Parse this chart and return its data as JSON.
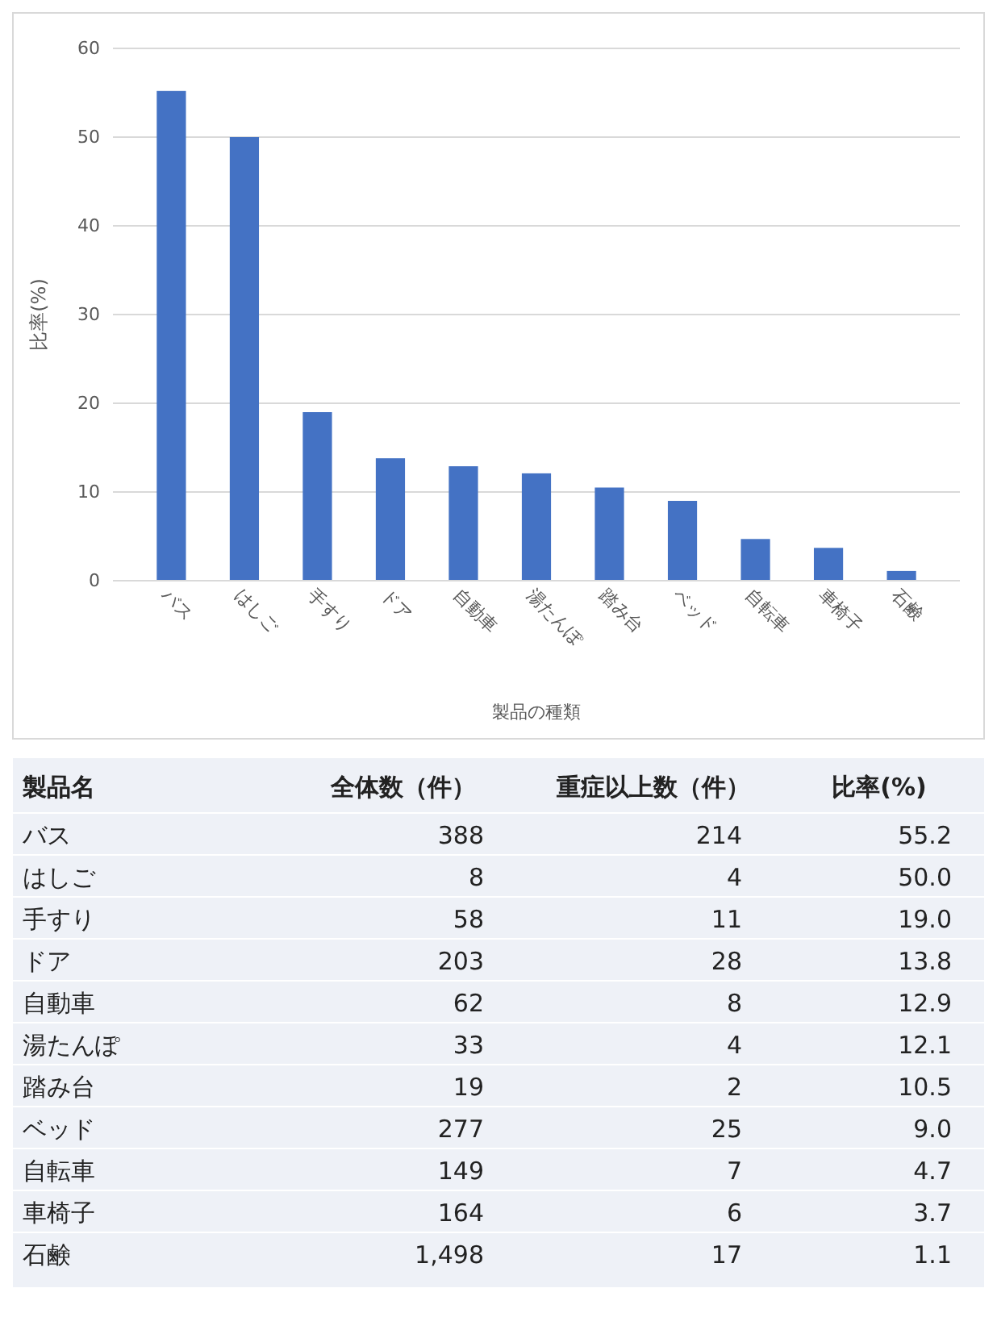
{
  "chart_data": [
    {
      "type": "bar",
      "xlabel": "製品の種類",
      "ylabel": "比率(%)",
      "categories": [
        "バス",
        "はしご",
        "手すり",
        "ドア",
        "自動車",
        "湯たんぽ",
        "踏み台",
        "ベッド",
        "自転車",
        "車椅子",
        "石鹸"
      ],
      "values": [
        55.2,
        50.0,
        19.0,
        13.8,
        12.9,
        12.1,
        10.5,
        9.0,
        4.7,
        3.7,
        1.1
      ],
      "color": "#4472c4",
      "ylim": [
        0,
        60
      ],
      "yticks": [
        0,
        10,
        20,
        30,
        40,
        50,
        60
      ],
      "grid": "y"
    },
    {
      "type": "other",
      "data_labels": true,
      "xlabel": "製品名",
      "categories": [
        "バス",
        "はしご",
        "手すり",
        "ドア",
        "自動車",
        "湯たんぽ",
        "踏み台",
        "ベッド",
        "自転車",
        "車椅子",
        "石鹸"
      ],
      "series": [
        {
          "name": "全体数（件）",
          "values": [
            388,
            8,
            58,
            203,
            62,
            33,
            19,
            277,
            149,
            164,
            1498
          ],
          "value_labels": [
            "388",
            "8",
            "58",
            "203",
            "62",
            "33",
            "19",
            "277",
            "149",
            "164",
            "1,498"
          ]
        },
        {
          "name": "重症以上数（件）",
          "values": [
            214,
            4,
            11,
            28,
            8,
            4,
            2,
            25,
            7,
            6,
            17
          ],
          "value_labels": [
            "214",
            "4",
            "11",
            "28",
            "8",
            "4",
            "2",
            "25",
            "7",
            "6",
            "17"
          ]
        },
        {
          "name": "比率(%)",
          "values": [
            55.2,
            50.0,
            19.0,
            13.8,
            12.9,
            12.1,
            10.5,
            9.0,
            4.7,
            3.7,
            1.1
          ],
          "value_labels": [
            "55.2",
            "50.0",
            "19.0",
            "13.8",
            "12.9",
            "12.1",
            "10.5",
            "9.0",
            "4.7",
            "3.7",
            "1.1"
          ]
        }
      ]
    }
  ]
}
